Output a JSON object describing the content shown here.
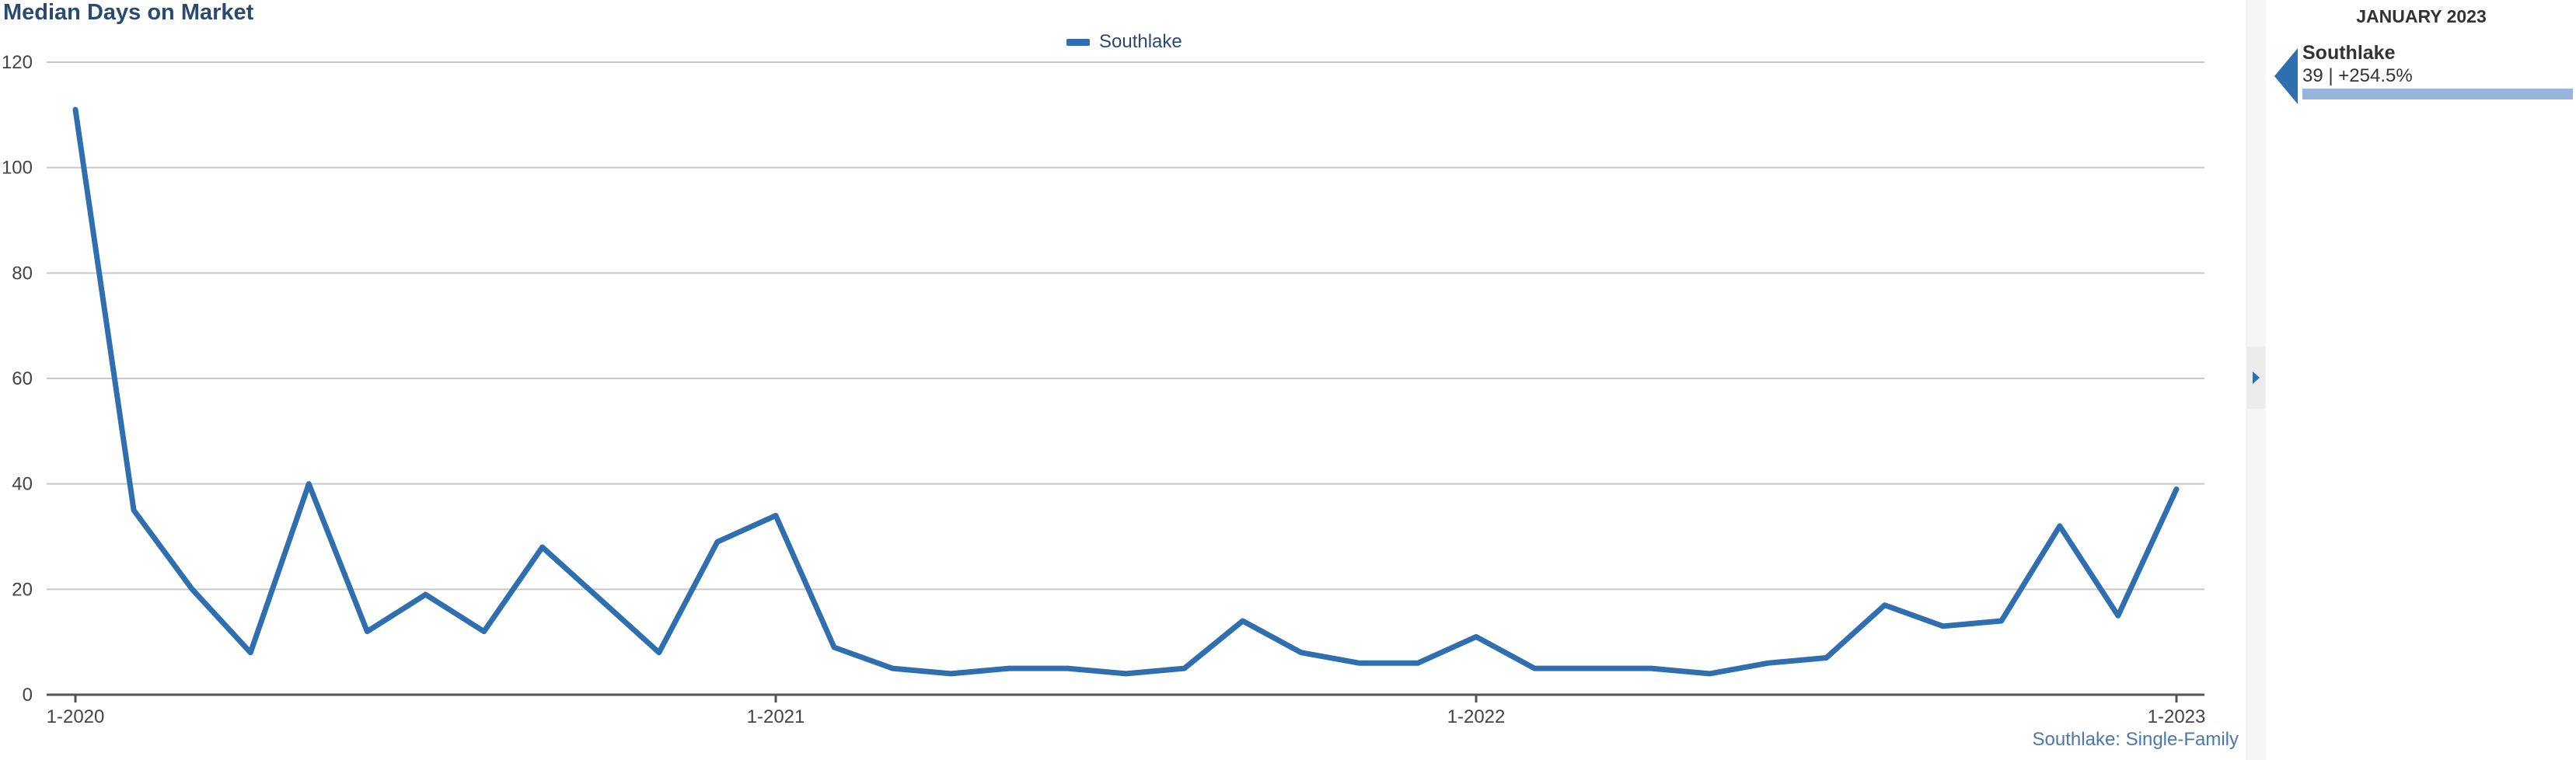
{
  "chart_data": {
    "type": "line",
    "title": "Median Days on Market",
    "legend": {
      "placement": "top-center",
      "entries": [
        "Southlake"
      ]
    },
    "x": [
      "1-2020",
      "2-2020",
      "3-2020",
      "4-2020",
      "5-2020",
      "6-2020",
      "7-2020",
      "8-2020",
      "9-2020",
      "10-2020",
      "11-2020",
      "12-2020",
      "1-2021",
      "2-2021",
      "3-2021",
      "4-2021",
      "5-2021",
      "6-2021",
      "7-2021",
      "8-2021",
      "9-2021",
      "10-2021",
      "11-2021",
      "12-2021",
      "1-2022",
      "2-2022",
      "3-2022",
      "4-2022",
      "5-2022",
      "6-2022",
      "7-2022",
      "8-2022",
      "9-2022",
      "10-2022",
      "11-2022",
      "12-2022",
      "1-2023"
    ],
    "x_tick_labels": [
      "1-2020",
      "1-2021",
      "1-2022",
      "1-2023"
    ],
    "series": [
      {
        "name": "Southlake",
        "color": "#2f6fb0",
        "values": [
          111,
          35,
          20,
          8,
          40,
          12,
          19,
          12,
          28,
          18,
          8,
          29,
          34,
          9,
          5,
          4,
          5,
          5,
          4,
          5,
          14,
          8,
          6,
          6,
          11,
          5,
          5,
          5,
          4,
          6,
          7,
          17,
          13,
          14,
          32,
          15,
          39
        ]
      }
    ],
    "ylim": [
      0,
      120
    ],
    "y_ticks": [
      0,
      20,
      40,
      60,
      80,
      100,
      120
    ],
    "grid": true,
    "footnote": "Southlake: Single-Family"
  },
  "side_panel": {
    "period": "JANUARY 2023",
    "name": "Southlake",
    "value_text": "39 | +254.5%",
    "bar_color": "#95b5db"
  }
}
